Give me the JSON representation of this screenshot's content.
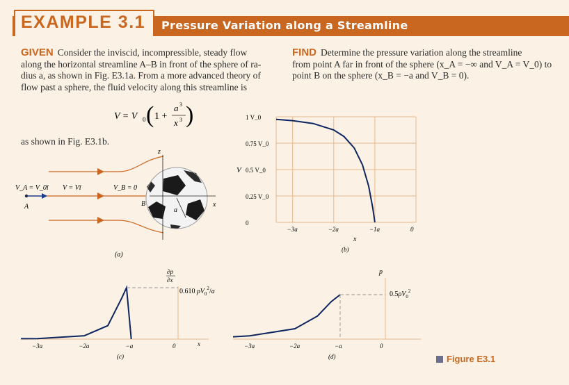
{
  "header": {
    "example_label": "EXAMPLE 3.1",
    "title": "Pressure Variation along a Streamline"
  },
  "given": {
    "heading": "GIVEN",
    "lines": [
      "Consider the inviscid, incompressible, steady flow",
      "along the horizontal streamline A–B in front of the sphere of ra-",
      "dius a, as shown in Fig. E3.1a. From a more advanced theory of",
      "flow past a sphere, the fluid velocity along this streamline is"
    ],
    "equation_lhs": "V = V",
    "equation_v0_sub": "0",
    "equation_paren_inner": "1 +",
    "equation_num": "a",
    "equation_num_exp": "3",
    "equation_den": "x",
    "equation_den_exp": "3",
    "after_equation": "as shown in Fig. E3.1b."
  },
  "find": {
    "heading": "FIND",
    "lines": [
      "Determine the pressure variation along the streamline",
      "from point A far in front of the sphere (x_A = −∞ and V_A = V_0) to",
      "point B on the sphere (x_B = −a and V_B = 0)."
    ]
  },
  "figure_a": {
    "caption": "(a)",
    "label_va": "V_A = V_0î",
    "label_v": "V = Vî",
    "label_vb": "V_B = 0",
    "label_A": "A",
    "label_B": "B",
    "label_z": "z",
    "label_x": "x",
    "label_a": "a"
  },
  "figure_b": {
    "caption": "(b)",
    "ylabel": "V",
    "xlabel": "x",
    "yticks": [
      "0",
      "0.25 V_0",
      "0.5 V_0",
      "0.75 V_0",
      "1 V_0"
    ],
    "xticks": [
      "−3a",
      "−2a",
      "−1a",
      "0"
    ]
  },
  "figure_c": {
    "caption": "(c)",
    "ylabel": "∂p / ∂x",
    "annotation": "0.610 ρV_0^2/a",
    "xlabel": "x",
    "xticks": [
      "−3a",
      "−2a",
      "−a",
      "0"
    ]
  },
  "figure_d": {
    "caption": "(d)",
    "ylabel": "p",
    "annotation": "0.5ρV_0^2",
    "xticks": [
      "−3a",
      "−2a",
      "−a",
      "0"
    ]
  },
  "figure_caption": "Figure E3.1",
  "colors": {
    "accent": "#c9661f",
    "background": "#fbf1e4",
    "curve": "#0d2560",
    "grid": "#e8b98d"
  },
  "chart_data": [
    {
      "type": "line",
      "title": "(b)",
      "xlabel": "x",
      "ylabel": "V",
      "series": [
        {
          "x": [
            -3.4,
            -3,
            -2.5,
            -2,
            -1.75,
            -1.5,
            -1.3,
            -1.15,
            -1.05,
            -1
          ],
          "y": [
            0.975,
            0.963,
            0.936,
            0.875,
            0.813,
            0.704,
            0.545,
            0.343,
            0.136,
            0
          ]
        }
      ],
      "xlim": [
        -3.4,
        0
      ],
      "ylim": [
        0,
        1
      ],
      "grid": true
    },
    {
      "type": "line",
      "title": "(c)",
      "xlabel": "x",
      "ylabel": "∂p/∂x",
      "series": [
        {
          "x": [
            -3.4,
            -3,
            -2,
            -1.5,
            -1.2,
            -1.1,
            -1
          ],
          "y": [
            0.005,
            0.007,
            0.04,
            0.16,
            0.49,
            0.61,
            0
          ]
        }
      ],
      "xlim": [
        -3.4,
        0.4
      ],
      "grid": false
    },
    {
      "type": "line",
      "title": "(d)",
      "xlabel": "x",
      "ylabel": "p",
      "series": [
        {
          "x": [
            -3.4,
            -3,
            -2,
            -1.5,
            -1.2,
            -1
          ],
          "y": [
            0.025,
            0.037,
            0.117,
            0.26,
            0.42,
            0.5
          ]
        }
      ],
      "xlim": [
        -3.4,
        0.4
      ],
      "grid": false
    }
  ]
}
